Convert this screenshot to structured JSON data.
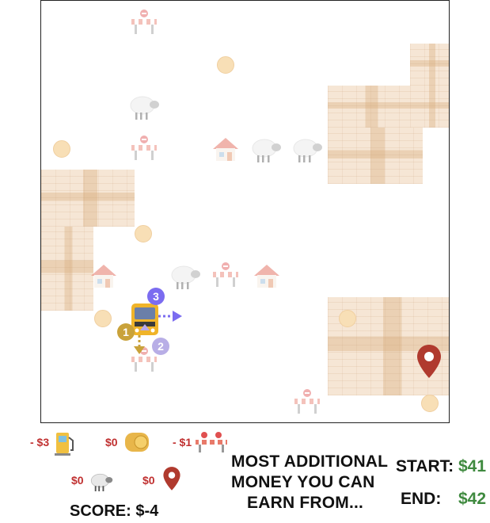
{
  "legend": {
    "fuel": {
      "value": "- $3",
      "icon": "fuel-pump-icon"
    },
    "hay": {
      "value": "$0",
      "icon": "hay-bale-icon"
    },
    "barrier": {
      "value": "- $1",
      "icon": "road-barrier-icon"
    },
    "sheep": {
      "value": "$0",
      "icon": "sheep-icon"
    },
    "pin": {
      "value": "$0",
      "icon": "location-pin-icon"
    }
  },
  "score": {
    "label": "SCORE:",
    "value": "$-4"
  },
  "question": {
    "line1": "MOST ADDITIONAL",
    "line2": "MONEY YOU CAN",
    "line3": "EARN FROM..."
  },
  "budget": {
    "start_label": "START:",
    "start_value": "$41",
    "end_label": "END:",
    "end_value": "$42"
  },
  "bus_moves": {
    "move1": "1",
    "move2": "2",
    "move3": "3"
  },
  "colors": {
    "negative": "#c03030",
    "positive": "#3f8a3f",
    "brick": "#f6e6d5",
    "coin": "#f8dfb6",
    "pin": "#b03a2e",
    "move_purple": "#7b6cf0"
  }
}
